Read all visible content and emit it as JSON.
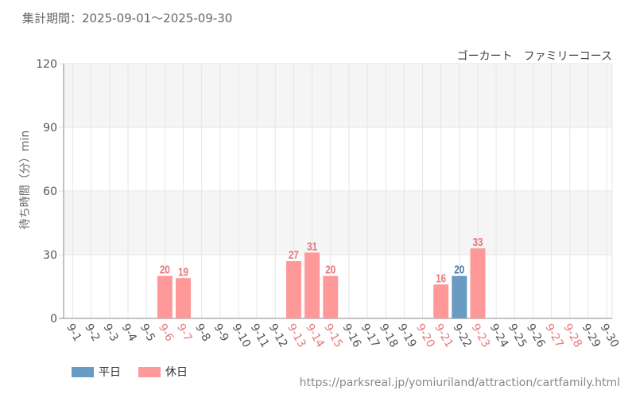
{
  "period_text": "集計期間：2025-09-01～2025-09-30",
  "attraction_name": "ゴーカート　ファミリーコース",
  "source_url": "https://parksreal.jp/yomiuriland/attraction/cartfamily.html",
  "colors": {
    "weekday": "#6a9bc3",
    "holiday": "#ff9999",
    "weekday_text": "#4a7aa5",
    "holiday_text": "#e8787a",
    "axis_text": "#555555",
    "grid": "#e6e6e6",
    "band": "#f5f5f5"
  },
  "legend": [
    {
      "label": "平日",
      "kind": "weekday"
    },
    {
      "label": "休日",
      "kind": "holiday"
    }
  ],
  "chart_data": {
    "type": "bar",
    "ylabel": "待ち時間（分）min",
    "ylim": [
      0,
      120
    ],
    "yticks": [
      0,
      30,
      60,
      90,
      120
    ],
    "categories": [
      "9-1",
      "9-2",
      "9-3",
      "9-4",
      "9-5",
      "9-6",
      "9-7",
      "9-8",
      "9-9",
      "9-10",
      "9-11",
      "9-12",
      "9-13",
      "9-14",
      "9-15",
      "9-16",
      "9-17",
      "9-18",
      "9-19",
      "9-20",
      "9-21",
      "9-22",
      "9-23",
      "9-24",
      "9-25",
      "9-26",
      "9-27",
      "9-28",
      "9-29",
      "9-30"
    ],
    "holiday": [
      false,
      false,
      false,
      false,
      false,
      true,
      true,
      false,
      false,
      false,
      false,
      false,
      true,
      true,
      true,
      false,
      false,
      false,
      false,
      true,
      true,
      false,
      true,
      false,
      false,
      false,
      true,
      true,
      false,
      false
    ],
    "values": [
      null,
      null,
      null,
      null,
      null,
      20,
      19,
      null,
      null,
      null,
      null,
      null,
      27,
      31,
      20,
      null,
      null,
      null,
      null,
      null,
      16,
      20,
      33,
      null,
      null,
      null,
      null,
      null,
      null,
      null
    ]
  }
}
